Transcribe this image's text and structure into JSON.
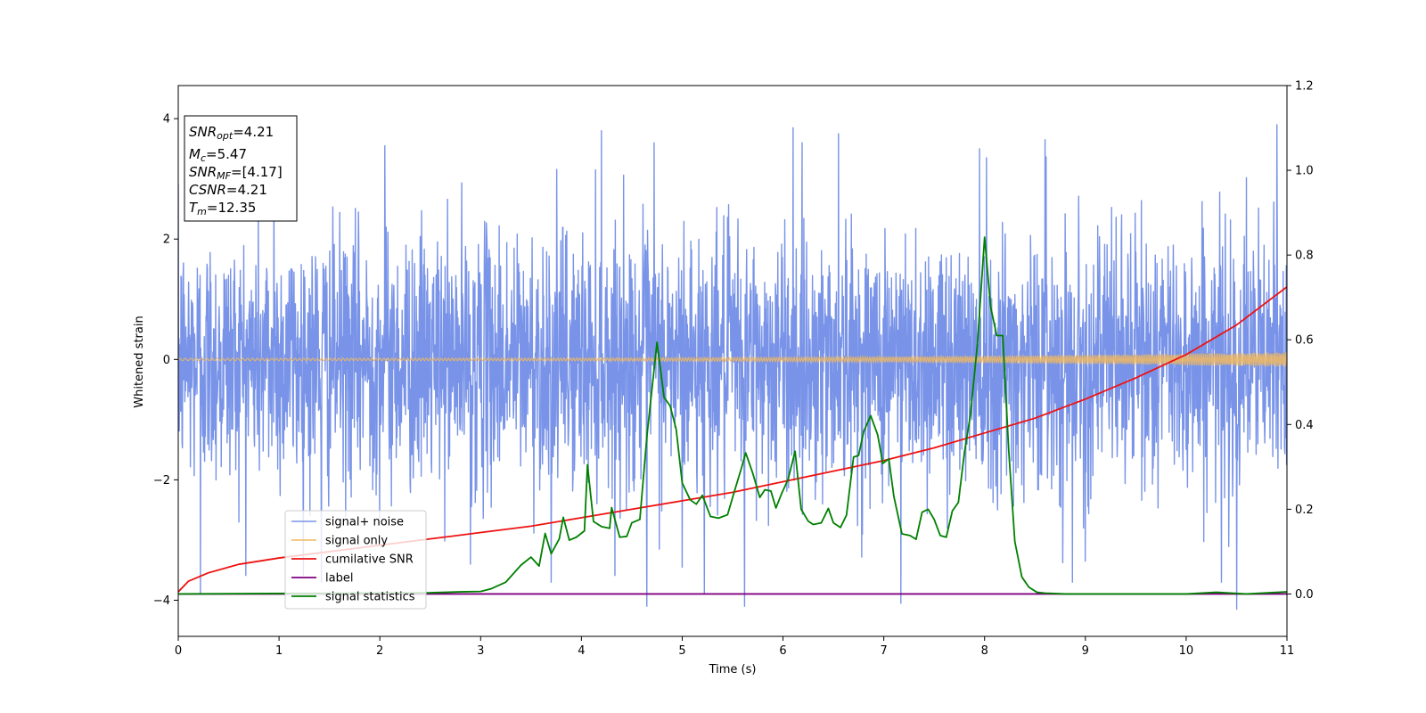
{
  "chart_data": {
    "type": "line",
    "xlabel": "Time (s)",
    "ylabel": "Whitened strain",
    "xlim": [
      0,
      11
    ],
    "ylim_left": [
      -4.6,
      4.55
    ],
    "ylim_right": [
      -0.1,
      1.2
    ],
    "x_ticks": [
      0,
      1,
      2,
      3,
      4,
      5,
      6,
      7,
      8,
      9,
      10,
      11
    ],
    "y_ticks_left": [
      -4,
      -2,
      0,
      2,
      4
    ],
    "y_ticks_right": [
      "0.0",
      "0.2",
      "0.4",
      "0.6",
      "0.8",
      "1.0",
      "1.2"
    ],
    "y_ticks_right_values": [
      0.0,
      0.2,
      0.4,
      0.6,
      0.8,
      1.0,
      1.2
    ],
    "legend_position": "lower-left",
    "stats_box": {
      "snr_opt": {
        "main": "SNR",
        "sub": "opt",
        "value": "=4.21"
      },
      "mc": {
        "main": "M",
        "sub": "c",
        "value": "=5.47"
      },
      "snr_mf": {
        "main": "SNR",
        "sub": "MF",
        "value": "=[4.17]"
      },
      "csnr": {
        "main": "CSNR",
        "sub": "",
        "value": "=4.21"
      },
      "tm": {
        "main": "T",
        "sub": "m",
        "value": "=12.35"
      }
    },
    "series": [
      {
        "name": "signal+ noise",
        "color": "#7893e8",
        "axis": "left",
        "amplitude_typical": 2.1,
        "amplitude_max": 3.9,
        "spikes": [
          [
            0.22,
            -3.9
          ],
          [
            0.95,
            2.9
          ],
          [
            1.42,
            -3.7
          ],
          [
            2.05,
            3.55
          ],
          [
            2.9,
            -3.4
          ],
          [
            3.7,
            -3.7
          ],
          [
            4.2,
            3.8
          ],
          [
            4.65,
            -4.1
          ],
          [
            4.72,
            3.6
          ],
          [
            5.0,
            -3.45
          ],
          [
            5.22,
            -3.9
          ],
          [
            5.62,
            -4.1
          ],
          [
            6.1,
            3.85
          ],
          [
            6.55,
            3.75
          ],
          [
            7.17,
            -4.05
          ],
          [
            7.95,
            3.5
          ],
          [
            8.02,
            3.35
          ],
          [
            8.6,
            3.65
          ],
          [
            8.87,
            -3.7
          ],
          [
            9.0,
            -3.35
          ],
          [
            10.5,
            -4.15
          ],
          [
            10.9,
            3.9
          ],
          [
            10.35,
            -3.7
          ]
        ]
      },
      {
        "name": "signal only",
        "color": "#f0b860",
        "axis": "left",
        "amplitude_start": 0.02,
        "amplitude_end": 0.12
      },
      {
        "name": "cumilative SNR",
        "color": "#ee1111",
        "axis": "right",
        "x": [
          0,
          0.1,
          0.3,
          0.6,
          1,
          1.5,
          2,
          2.5,
          3,
          3.5,
          4,
          4.5,
          5,
          5.5,
          6,
          6.5,
          7,
          7.5,
          8,
          8.5,
          9,
          9.5,
          10,
          10.5,
          11
        ],
        "y": [
          0.005,
          0.03,
          0.05,
          0.07,
          0.085,
          0.1,
          0.115,
          0.13,
          0.145,
          0.16,
          0.18,
          0.2,
          0.22,
          0.24,
          0.265,
          0.29,
          0.315,
          0.345,
          0.38,
          0.415,
          0.46,
          0.51,
          0.565,
          0.635,
          0.725
        ]
      },
      {
        "name": "label",
        "color": "#800080",
        "axis": "right",
        "x": [
          0,
          11
        ],
        "y": [
          0,
          0
        ]
      },
      {
        "name": "signal statistics",
        "color": "#008000",
        "axis": "right",
        "x": [
          0,
          2.5,
          2.8,
          3.0,
          3.1,
          3.25,
          3.4,
          3.5,
          3.58,
          3.64,
          3.7,
          3.78,
          3.82,
          3.88,
          3.95,
          4.03,
          4.06,
          4.12,
          4.2,
          4.28,
          4.3,
          4.38,
          4.45,
          4.5,
          4.58,
          4.65,
          4.75,
          4.82,
          4.88,
          4.94,
          5.0,
          5.08,
          5.14,
          5.2,
          5.28,
          5.36,
          5.45,
          5.52,
          5.58,
          5.63,
          5.7,
          5.77,
          5.82,
          5.88,
          5.93,
          5.99,
          6.05,
          6.12,
          6.18,
          6.25,
          6.3,
          6.38,
          6.45,
          6.5,
          6.57,
          6.63,
          6.7,
          6.75,
          6.8,
          6.87,
          6.94,
          6.99,
          7.05,
          7.1,
          7.18,
          7.26,
          7.32,
          7.38,
          7.44,
          7.5,
          7.56,
          7.62,
          7.68,
          7.74,
          7.8,
          7.86,
          7.93,
          8.0,
          8.06,
          8.12,
          8.18,
          8.24,
          8.3,
          8.37,
          8.44,
          8.52,
          8.6,
          8.8,
          10.0,
          10.3,
          10.6,
          11.0
        ],
        "y": [
          0,
          0.003,
          0.005,
          0.006,
          0.012,
          0.028,
          0.068,
          0.087,
          0.066,
          0.143,
          0.095,
          0.13,
          0.181,
          0.127,
          0.134,
          0.149,
          0.305,
          0.171,
          0.159,
          0.155,
          0.204,
          0.134,
          0.136,
          0.168,
          0.176,
          0.373,
          0.594,
          0.464,
          0.444,
          0.389,
          0.262,
          0.222,
          0.212,
          0.233,
          0.183,
          0.179,
          0.187,
          0.244,
          0.291,
          0.333,
          0.285,
          0.228,
          0.246,
          0.243,
          0.203,
          0.239,
          0.27,
          0.337,
          0.2,
          0.172,
          0.164,
          0.168,
          0.202,
          0.168,
          0.157,
          0.186,
          0.323,
          0.327,
          0.383,
          0.421,
          0.375,
          0.308,
          0.319,
          0.23,
          0.142,
          0.138,
          0.129,
          0.193,
          0.2,
          0.176,
          0.138,
          0.134,
          0.196,
          0.216,
          0.334,
          0.423,
          0.593,
          0.842,
          0.678,
          0.61,
          0.61,
          0.337,
          0.124,
          0.04,
          0.016,
          0.004,
          0.002,
          0.0,
          0.0,
          0.004,
          0.0,
          0.005
        ]
      }
    ]
  }
}
